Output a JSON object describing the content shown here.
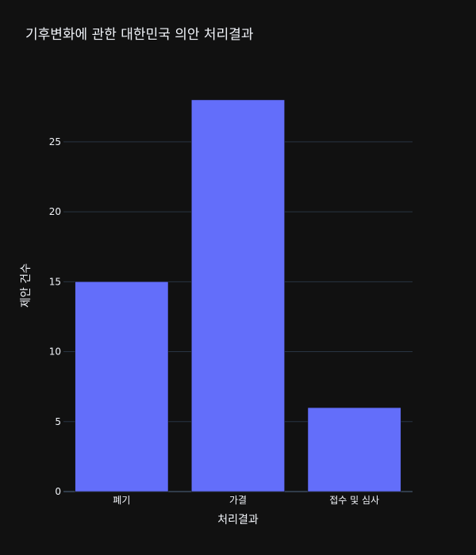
{
  "chart_data": {
    "type": "bar",
    "title": "기후변화에 관한 대한민국 의안 처리결과",
    "xlabel": "처리결과",
    "ylabel": "제안 건수",
    "categories": [
      "폐기",
      "가결",
      "접수 및 심사"
    ],
    "values": [
      15,
      28,
      6
    ],
    "ylim": [
      0,
      29.47
    ],
    "yticks": [
      0,
      5,
      10,
      15,
      20,
      25
    ],
    "grid": true,
    "colors": {
      "background": "#111111",
      "bar": "#636efa",
      "grid": "#283442",
      "text": "#f2f5fa"
    }
  }
}
